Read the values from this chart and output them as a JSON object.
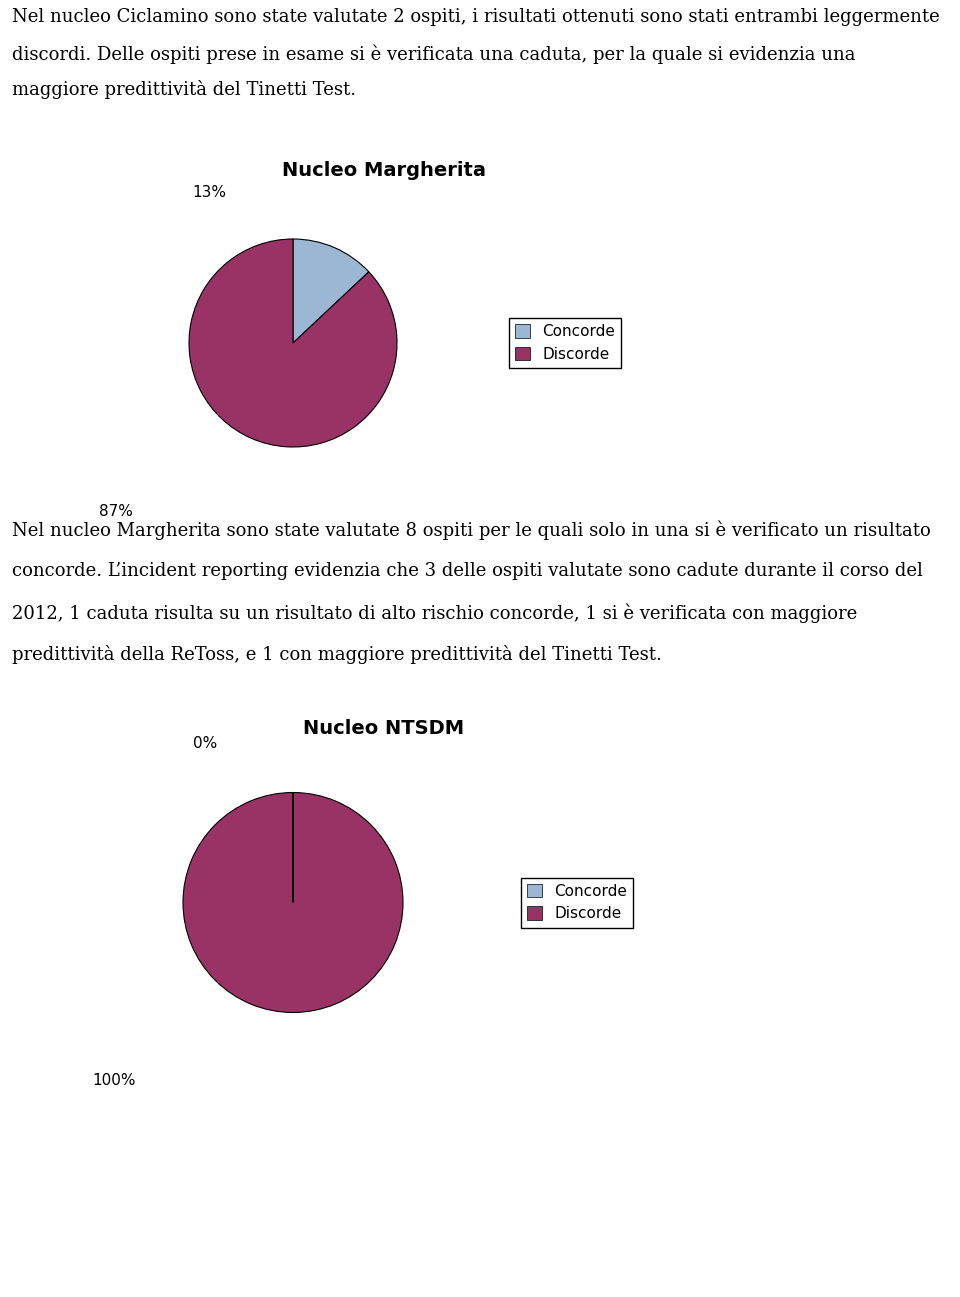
{
  "text1_lines": [
    "Nel nucleo Ciclamino sono state valutate 2 ospiti, i risultati ottenuti sono stati entrambi leggermente",
    "discordi. Delle ospiti prese in esame si è verificata una caduta, per la quale si evidenzia una",
    "maggiore predittività del Tinetti Test."
  ],
  "text2_lines": [
    "Nel nucleo Margherita sono state valutate 8 ospiti per le quali solo in una si è verificato un risultato",
    "concorde. L’incident reporting evidenzia che 3 delle ospiti valutate sono cadute durante il corso del",
    "2012, 1 caduta risulta su un risultato di alto rischio concorde, 1 si è verificata con maggiore",
    "predittività della ReToss, e 1 con maggiore predittività del Tinetti Test."
  ],
  "chart1": {
    "title": "Nucleo Margherita",
    "slices": [
      13,
      87
    ],
    "colors": [
      "#9BB7D4",
      "#993366"
    ],
    "pct1": "13%",
    "pct2": "87%",
    "startangle": 90
  },
  "chart2": {
    "title": "Nucleo NTSDM",
    "slices": [
      0.001,
      99.999
    ],
    "colors": [
      "#9BB7D4",
      "#993366"
    ],
    "pct1": "0%",
    "pct2": "100%",
    "startangle": 90
  },
  "legend_labels": [
    "Concorde",
    "Discorde"
  ],
  "legend_colors": [
    "#9BB7D4",
    "#993366"
  ],
  "bg_color": "#ffffff",
  "text_color": "#000000",
  "font_size_text": 13.0,
  "font_size_title": 14,
  "font_size_legend": 11,
  "font_size_pct": 11
}
